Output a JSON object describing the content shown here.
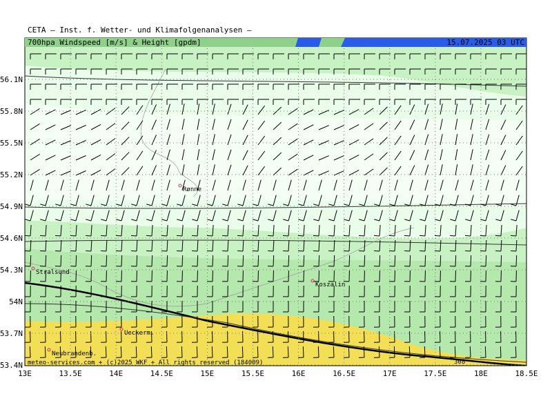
{
  "header": {
    "institute": "CETA – Inst. f. Wetter- und Klimafolgenanalysen –",
    "title": "700hpa Windspeed [m/s] & Height [gpdm]",
    "valid_time": "15.07.2025 03 UTC"
  },
  "map": {
    "lat_ticks": [
      {
        "value": 53.4,
        "label": "53.4N"
      },
      {
        "value": 53.7,
        "label": "53.7N"
      },
      {
        "value": 54,
        "label": "54N"
      },
      {
        "value": 54.3,
        "label": "54.3N"
      },
      {
        "value": 54.6,
        "label": "54.6N"
      },
      {
        "value": 54.9,
        "label": "54.9N"
      },
      {
        "value": 55.2,
        "label": "55.2N"
      },
      {
        "value": 55.5,
        "label": "55.5N"
      },
      {
        "value": 55.8,
        "label": "55.8N"
      },
      {
        "value": 56.1,
        "label": "56.1N"
      }
    ],
    "lon_ticks": [
      {
        "value": 13,
        "label": "13E"
      },
      {
        "value": 13.5,
        "label": "13.5E"
      },
      {
        "value": 14,
        "label": "14E"
      },
      {
        "value": 14.5,
        "label": "14.5E"
      },
      {
        "value": 15,
        "label": "15E"
      },
      {
        "value": 15.5,
        "label": "15.5E"
      },
      {
        "value": 16,
        "label": "16E"
      },
      {
        "value": 16.5,
        "label": "16.5E"
      },
      {
        "value": 17,
        "label": "17E"
      },
      {
        "value": 17.5,
        "label": "17.5E"
      },
      {
        "value": 18,
        "label": "18E"
      },
      {
        "value": 18.5,
        "label": "18.5E"
      }
    ],
    "cities": [
      "Rønne",
      "Stralsund",
      "Koszalin",
      "Ueckerm.",
      "Neubrandenb."
    ],
    "contour_label": "308",
    "footer": "meteo-services.com + (c)2025 WKF + All rights reserved (184009)"
  }
}
